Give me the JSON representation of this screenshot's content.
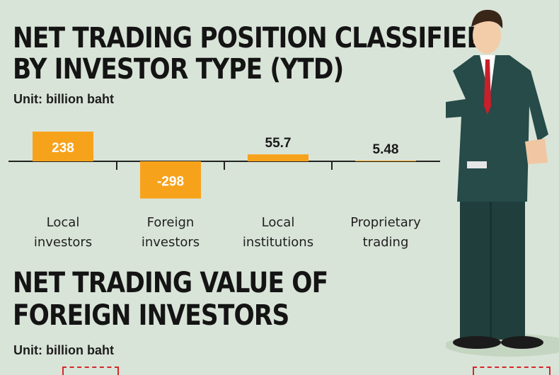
{
  "section1": {
    "title_line1": "NET TRADING POSITION CLASSIFIED",
    "title_line2": "BY INVESTOR TYPE (YTD)",
    "unit": "Unit: billion baht"
  },
  "section2": {
    "title_line1": "NET TRADING VALUE OF",
    "title_line2": "FOREIGN INVESTORS",
    "unit": "Unit: billion baht"
  },
  "colors": {
    "bar": "#f7a21b",
    "label_on_bar": "#ffffff",
    "label_off_bar": "#1a1a1a",
    "axis": "#222222",
    "background": "#d9e4d8",
    "accent_dash": "#d8262a"
  },
  "chart_data": {
    "type": "bar",
    "categories": [
      "Local investors",
      "Foreign investors",
      "Local institutions",
      "Proprietary trading"
    ],
    "category_lines": [
      [
        "Local",
        "investors"
      ],
      [
        "Foreign",
        "investors"
      ],
      [
        "Local",
        "institutions"
      ],
      [
        "Proprietary",
        "trading"
      ]
    ],
    "values": [
      238,
      -298,
      55.7,
      5.48
    ],
    "value_labels": [
      "238",
      "-298",
      "55.7",
      "5.48"
    ],
    "ylim": [
      -310,
      250
    ],
    "grid": false,
    "legend": "none"
  }
}
